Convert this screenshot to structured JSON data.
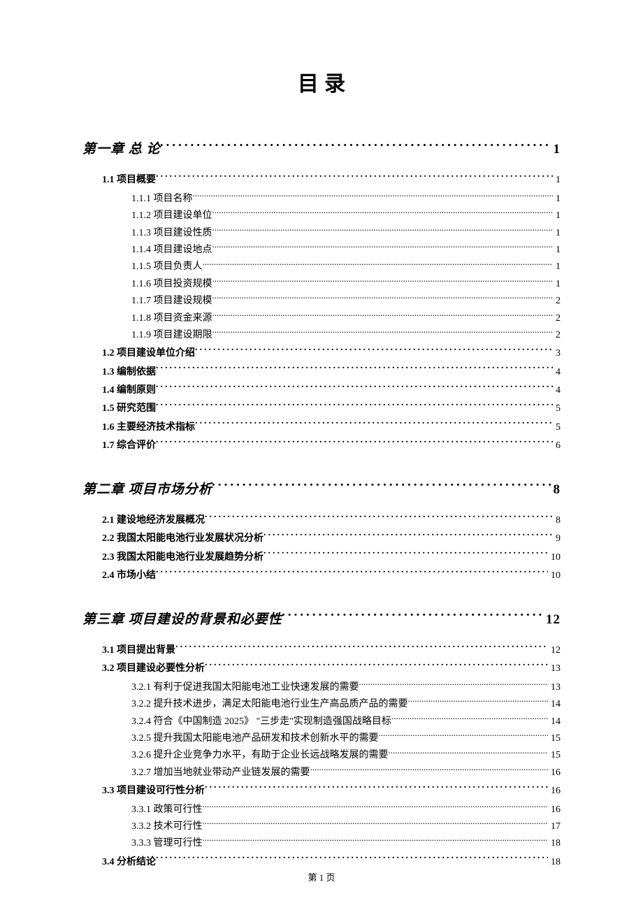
{
  "title": "目 录",
  "footer": "第 1 页",
  "toc": [
    {
      "level": "chapter",
      "label": "第一章 总 论",
      "page": "1"
    },
    {
      "level": "section",
      "label": "1.1 项目概要",
      "page": "1"
    },
    {
      "level": "sub",
      "label": "1.1.1 项目名称",
      "page": "1"
    },
    {
      "level": "sub",
      "label": "1.1.2 项目建设单位",
      "page": "1"
    },
    {
      "level": "sub",
      "label": "1.1.3 项目建设性质",
      "page": "1"
    },
    {
      "level": "sub",
      "label": "1.1.4 项目建设地点",
      "page": "1"
    },
    {
      "level": "sub",
      "label": "1.1.5 项目负责人",
      "page": "1"
    },
    {
      "level": "sub",
      "label": "1.1.6 项目投资规模",
      "page": "1"
    },
    {
      "level": "sub",
      "label": "1.1.7 项目建设规模",
      "page": "2"
    },
    {
      "level": "sub",
      "label": "1.1.8 项目资金来源",
      "page": "2"
    },
    {
      "level": "sub",
      "label": "1.1.9 项目建设期限",
      "page": "2"
    },
    {
      "level": "section",
      "label": "1.2 项目建设单位介绍",
      "page": "3"
    },
    {
      "level": "section",
      "label": "1.3 编制依据",
      "page": "4"
    },
    {
      "level": "section",
      "label": "1.4 编制原则",
      "page": "4"
    },
    {
      "level": "section",
      "label": "1.5 研究范围",
      "page": "5"
    },
    {
      "level": "section",
      "label": "1.6 主要经济技术指标",
      "page": "5"
    },
    {
      "level": "section",
      "label": "1.7 综合评价",
      "page": "6"
    },
    {
      "level": "chapter",
      "label": "第二章 项目市场分析",
      "page": "8"
    },
    {
      "level": "section",
      "label": "2.1 建设地经济发展概况",
      "page": "8"
    },
    {
      "level": "section",
      "label": "2.2 我国太阳能电池行业发展状况分析",
      "page": "9"
    },
    {
      "level": "section",
      "label": "2.3 我国太阳能电池行业发展趋势分析",
      "page": "10"
    },
    {
      "level": "section",
      "label": "2.4 市场小结",
      "page": "10"
    },
    {
      "level": "chapter",
      "label": "第三章 项目建设的背景和必要性",
      "page": "12"
    },
    {
      "level": "section",
      "label": "3.1 项目提出背景",
      "page": "12"
    },
    {
      "level": "section",
      "label": "3.2 项目建设必要性分析",
      "page": "13"
    },
    {
      "level": "sub",
      "label": "3.2.1 有利于促进我国太阳能电池工业快速发展的需要",
      "page": "13"
    },
    {
      "level": "sub",
      "label": "3.2.2 提升技术进步，满足太阳能电池行业生产高品质产品的需要",
      "page": "14"
    },
    {
      "level": "sub",
      "label": "3.2.4 符合《中国制造 2025》 \"三步走\"实现制造强国战略目标",
      "page": "14"
    },
    {
      "level": "sub",
      "label": "3.2.5 提升我国太阳能电池产品研发和技术创新水平的需要",
      "page": "15"
    },
    {
      "level": "sub",
      "label": "3.2.6 提升企业竞争力水平，有助于企业长远战略发展的需要",
      "page": "15"
    },
    {
      "level": "sub",
      "label": "3.2.7 增加当地就业带动产业链发展的需要",
      "page": "16"
    },
    {
      "level": "section",
      "label": "3.3 项目建设可行性分析",
      "page": "16"
    },
    {
      "level": "sub",
      "label": "3.3.1 政策可行性",
      "page": "16"
    },
    {
      "level": "sub",
      "label": "3.3.2 技术可行性",
      "page": "17"
    },
    {
      "level": "sub",
      "label": "3.3.3 管理可行性",
      "page": "18"
    },
    {
      "level": "section",
      "label": "3.4 分析结论",
      "page": "18"
    }
  ],
  "colors": {
    "text": "#000000",
    "background": "#ffffff"
  },
  "typography": {
    "title_fontsize_pt": 22,
    "chapter_fontsize_pt": 14,
    "section_fontsize_pt": 10.5,
    "sub_fontsize_pt": 10.5
  }
}
